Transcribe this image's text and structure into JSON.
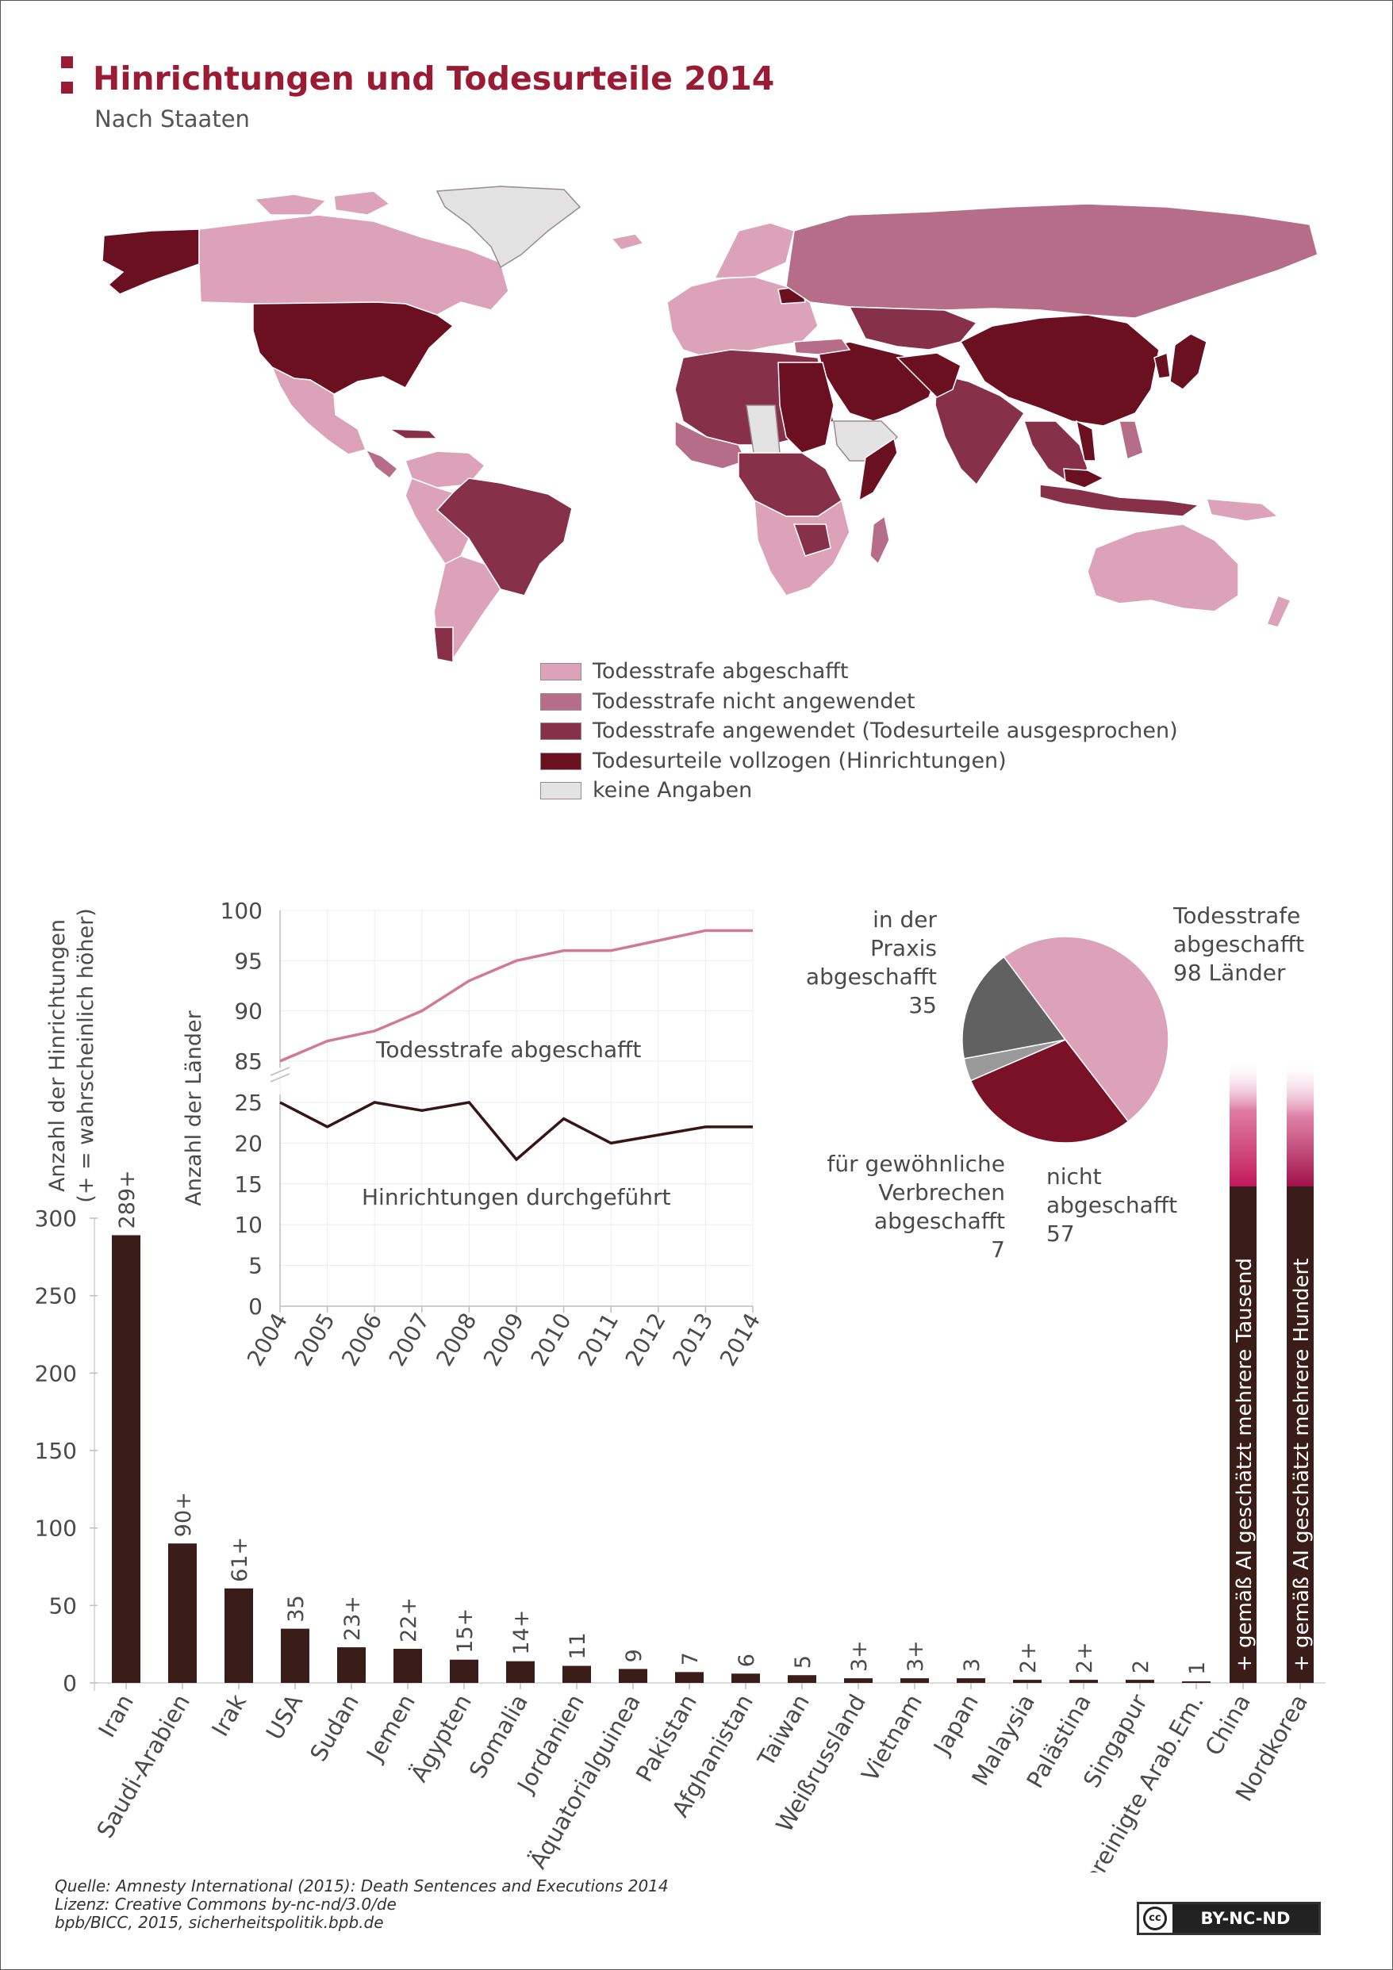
{
  "header": {
    "title": "Hinrichtungen und Todesurteile 2014",
    "subtitle": "Nach Staaten"
  },
  "colors": {
    "abgeschafft": "#dca3b8",
    "nicht_angewendet": "#b66d87",
    "angewendet": "#86304a",
    "vollzogen": "#6b1020",
    "keine_angaben": "#e4e3e4",
    "accent": "#9b1b34",
    "bar": "#3a1d18",
    "line_abgeschafft": "#d07a98",
    "line_hinrichtungen": "#3a1414",
    "pie_praxis": "#616161",
    "pie_gewoehnlich": "#9a9a9a",
    "pie_nicht": "#7a1126"
  },
  "legend": [
    {
      "label": "Todesstrafe abgeschafft",
      "color": "#dca3b8"
    },
    {
      "label": "Todesstrafe nicht angewendet",
      "color": "#b66d87"
    },
    {
      "label": "Todesstrafe angewendet (Todesurteile ausgesprochen)",
      "color": "#86304a"
    },
    {
      "label": "Todesurteile vollzogen (Hinrichtungen)",
      "color": "#6b1020"
    },
    {
      "label": "keine Angaben",
      "color": "#e4e3e4"
    }
  ],
  "chart_data": [
    {
      "type": "bar",
      "ylabel": "Anzahl der Hinrichtungen",
      "ylabel2": "(+ = wahrscheinlich höher)",
      "ylim": [
        0,
        300
      ],
      "yticks": [
        0,
        50,
        100,
        150,
        200,
        250,
        300
      ],
      "categories": [
        "Iran",
        "Saudi-Arabien",
        "Irak",
        "USA",
        "Sudan",
        "Jemen",
        "Ägypten",
        "Somalia",
        "Jordanien",
        "Äquatorialguinea",
        "Pakistan",
        "Afghanistan",
        "Taiwan",
        "Weißrussland",
        "Vietnam",
        "Japan",
        "Malaysia",
        "Palästina",
        "Singapur",
        "Vereinigte Arab.Em."
      ],
      "values": [
        289,
        90,
        61,
        35,
        23,
        22,
        15,
        14,
        11,
        9,
        7,
        6,
        5,
        3,
        3,
        3,
        2,
        2,
        2,
        1
      ],
      "value_labels": [
        "289+",
        "90+",
        "61+",
        "35",
        "23+",
        "22+",
        "15+",
        "14+",
        "11",
        "9",
        "7",
        "6",
        "5",
        "3+",
        "3+",
        "3",
        "2+",
        "2+",
        "2",
        "1"
      ],
      "special": [
        {
          "category": "China",
          "label": "+ gemäß AI geschätzt mehrere Tausend"
        },
        {
          "category": "Nordkorea",
          "label": "+ gemäß AI geschätzt mehrere Hundert"
        }
      ]
    },
    {
      "type": "line",
      "ylabel": "Anzahl der Länder",
      "x": [
        2004,
        2005,
        2006,
        2007,
        2008,
        2009,
        2010,
        2011,
        2012,
        2013,
        2014
      ],
      "upper_ylim": [
        85,
        100
      ],
      "upper_yticks": [
        85,
        90,
        95,
        100
      ],
      "lower_ylim": [
        0,
        25
      ],
      "lower_yticks": [
        0,
        5,
        10,
        15,
        20,
        25
      ],
      "series": [
        {
          "name": "Todesstrafe abgeschafft",
          "values": [
            85,
            87,
            88,
            90,
            93,
            95,
            96,
            96,
            97,
            98,
            98
          ]
        },
        {
          "name": "Hinrichtungen durchgeführt",
          "values": [
            25,
            22,
            25,
            24,
            25,
            18,
            23,
            20,
            21,
            22,
            22
          ]
        }
      ]
    },
    {
      "type": "pie",
      "slices": [
        {
          "label": "Todesstrafe abgeschafft",
          "sublabel": "98 Länder",
          "value": 98
        },
        {
          "label": "nicht abgeschafft",
          "sublabel": "57",
          "value": 57
        },
        {
          "label": "für gewöhnliche Verbrechen abgeschafft",
          "sublabel": "7",
          "value": 7
        },
        {
          "label": "in der Praxis abgeschafft",
          "sublabel": "35",
          "value": 35
        }
      ]
    }
  ],
  "pie_labels": {
    "abgeschafft": [
      "Todesstrafe",
      "abgeschafft",
      "98 Länder"
    ],
    "praxis": [
      "in der",
      "Praxis",
      "abgeschafft",
      "35"
    ],
    "gewoehnlich": [
      "für gewöhnliche",
      "Verbrechen",
      "abgeschafft",
      "7"
    ],
    "nicht": [
      "nicht",
      "abgeschafft",
      "57"
    ]
  },
  "footer": {
    "source": "Quelle: Amnesty International (2015): Death Sentences and Executions 2014",
    "license": "Lizenz: Creative Commons by-nc-nd/3.0/de",
    "credit": "bpb/BICC, 2015, sicherheitspolitik.bpb.de",
    "badge_cc": "cc",
    "badge_label": "BY-NC-ND"
  }
}
